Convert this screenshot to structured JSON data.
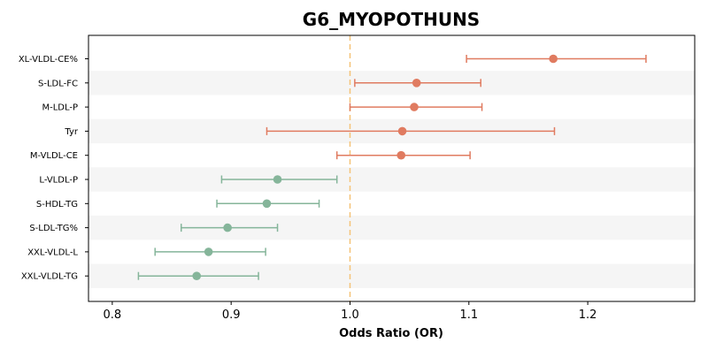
{
  "chart_data": {
    "type": "forest",
    "title": "G6_MYOPOTHUNS",
    "xlabel": "Odds Ratio (OR)",
    "ylabel": "",
    "xlim": [
      0.78,
      1.29
    ],
    "xticks": [
      0.8,
      0.9,
      1.0,
      1.1,
      1.2
    ],
    "xtick_labels": [
      "0.8",
      "0.9",
      "1.0",
      "1.1",
      "1.2"
    ],
    "reference_line": 1.0,
    "grid": false,
    "row_shading": "alternating",
    "colors": {
      "positive": "#e07b60",
      "negative": "#85b59a",
      "reference_line": "#f5c377",
      "row_band": "#f5f5f5"
    },
    "categories": [
      "XL-VLDL-CE%",
      "S-LDL-FC",
      "M-LDL-P",
      "Tyr",
      "M-VLDL-CE",
      "L-VLDL-P",
      "S-HDL-TG",
      "S-LDL-TG%",
      "XXL-VLDL-L",
      "XXL-VLDL-TG"
    ],
    "or": [
      1.171,
      1.056,
      1.054,
      1.044,
      1.043,
      0.939,
      0.93,
      0.897,
      0.881,
      0.871
    ],
    "ci_low": [
      1.098,
      1.004,
      1.0,
      0.93,
      0.989,
      0.892,
      0.888,
      0.858,
      0.836,
      0.822
    ],
    "ci_high": [
      1.249,
      1.11,
      1.111,
      1.172,
      1.101,
      0.989,
      0.974,
      0.939,
      0.929,
      0.923
    ]
  }
}
